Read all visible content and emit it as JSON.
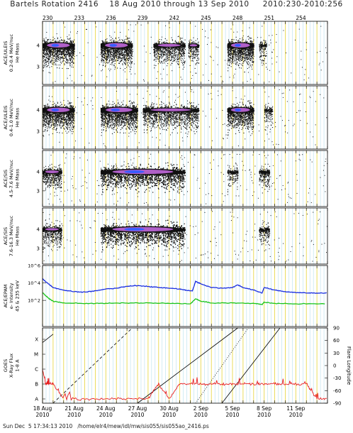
{
  "title": "Bartels Rotation 2416    18 Aug 2010 through 13 Sep 2010     2010:230-2010:256",
  "footer": "Sun Dec  5 17:34:13 2010   /home/elr4/mew/idl/mw/sis055/sis055ao_2416.ps",
  "top_axis": {
    "doy_start": 230,
    "doy_end": 257,
    "labels": [
      {
        "doy": 230,
        "text": "230"
      },
      {
        "doy": 233,
        "text": "233"
      },
      {
        "doy": 236,
        "text": "236"
      },
      {
        "doy": 239,
        "text": "239"
      },
      {
        "doy": 242,
        "text": "242"
      },
      {
        "doy": 245,
        "text": "245"
      },
      {
        "doy": 248,
        "text": "248"
      },
      {
        "doy": 251,
        "text": "251"
      },
      {
        "doy": 254,
        "text": "254"
      }
    ]
  },
  "bottom_axis": {
    "labels": [
      {
        "doy": 230,
        "line1": "18 Aug",
        "line2": "2010"
      },
      {
        "doy": 233,
        "line1": "21 Aug",
        "line2": "2010"
      },
      {
        "doy": 236,
        "line1": "24 Aug",
        "line2": "2010"
      },
      {
        "doy": 239,
        "line1": "27 Aug",
        "line2": "2010"
      },
      {
        "doy": 242,
        "line1": "30 Aug",
        "line2": "2010"
      },
      {
        "doy": 245,
        "line1": "2 Sep",
        "line2": "2010"
      },
      {
        "doy": 248,
        "line1": "5 Sep",
        "line2": "2010"
      },
      {
        "doy": 251,
        "line1": "8 Sep",
        "line2": "2010"
      },
      {
        "doy": 254,
        "line1": "11 Sep",
        "line2": "2010"
      }
    ]
  },
  "colors": {
    "grid_major": "#e8d84a",
    "grid_minor": "#a8d8e8",
    "dots": "#111111",
    "core": "#b060c8",
    "core_center": "#3a5cff",
    "electron_high": "#1a2ee0",
    "electron_low": "#19c419",
    "xray": "#e82020",
    "frame": "#000000"
  },
  "chart_data": [
    {
      "type": "scatter",
      "ylabel": [
        "ACE/ULEIS",
        "0.2-0.4 MeV/nuc",
        "He Mass"
      ],
      "yticks": [
        "4",
        "3"
      ],
      "bursts": [
        {
          "doy_start": 230.0,
          "doy_end": 233.0,
          "intensity": 1.0
        },
        {
          "doy_start": 235.5,
          "doy_end": 238.5,
          "intensity": 1.0
        },
        {
          "doy_start": 240.5,
          "doy_end": 243.5,
          "intensity": 0.6
        },
        {
          "doy_start": 243.8,
          "doy_end": 244.8,
          "intensity": 0.5
        },
        {
          "doy_start": 247.5,
          "doy_end": 250.0,
          "intensity": 1.0
        },
        {
          "doy_start": 250.5,
          "doy_end": 251.2,
          "intensity": 0.3
        }
      ]
    },
    {
      "type": "scatter",
      "ylabel": [
        "ACE/ULEIS",
        "0.4-1.0 MeV/nuc",
        "He Mass"
      ],
      "yticks": [
        "4",
        "3"
      ],
      "bursts": [
        {
          "doy_start": 230.0,
          "doy_end": 233.0,
          "intensity": 1.0
        },
        {
          "doy_start": 235.5,
          "doy_end": 239.0,
          "intensity": 1.0
        },
        {
          "doy_start": 239.5,
          "doy_end": 244.8,
          "intensity": 0.6
        },
        {
          "doy_start": 247.5,
          "doy_end": 250.0,
          "intensity": 0.9
        },
        {
          "doy_start": 251.0,
          "doy_end": 251.8,
          "intensity": 0.3
        }
      ]
    },
    {
      "type": "scatter",
      "ylabel": [
        "ACE/SIS",
        "4.5-7.6 MeV/nuc",
        "He Mass"
      ],
      "yticks": [
        "4",
        "3"
      ],
      "bursts": [
        {
          "doy_start": 230.0,
          "doy_end": 231.8,
          "intensity": 0.6
        },
        {
          "doy_start": 235.5,
          "doy_end": 243.5,
          "intensity": 1.0
        },
        {
          "doy_start": 247.5,
          "doy_end": 248.5,
          "intensity": 0.3
        },
        {
          "doy_start": 250.5,
          "doy_end": 251.5,
          "intensity": 0.4
        }
      ]
    },
    {
      "type": "scatter",
      "ylabel": [
        "ACE/SIS",
        "7.6-16.3 MeV/nuc",
        "He Mass"
      ],
      "yticks": [
        "4",
        "3"
      ],
      "bursts": [
        {
          "doy_start": 230.0,
          "doy_end": 231.8,
          "intensity": 0.5
        },
        {
          "doy_start": 235.5,
          "doy_end": 243.5,
          "intensity": 1.0
        },
        {
          "doy_start": 250.5,
          "doy_end": 251.5,
          "intensity": 0.35
        }
      ]
    },
    {
      "type": "line",
      "ylabel": [
        "ACE/EPAM",
        "e- Intensity",
        "45 & 235 keV"
      ],
      "yscale": "log",
      "ylim": [
        0.1,
        1000000
      ],
      "yticks": [
        "10^6",
        "10^4",
        "10^2"
      ],
      "series": [
        {
          "name": "45 keV",
          "x": [
            230.0,
            230.5,
            231.0,
            232.0,
            233.0,
            234.0,
            235.0,
            236.0,
            237.0,
            238.0,
            239.0,
            240.0,
            241.0,
            242.0,
            243.0,
            243.5,
            244.2,
            244.5,
            245.0,
            246.0,
            247.0,
            248.0,
            248.5,
            249.0,
            250.0,
            250.8,
            251.0,
            252.0,
            253.0,
            254.0,
            255.0,
            256.0,
            257.0
          ],
          "y": [
            30000,
            9000,
            3000,
            1500,
            1000,
            900,
            1200,
            2000,
            2500,
            4000,
            5000,
            4000,
            3000,
            2500,
            2000,
            1500,
            1200,
            15000,
            8000,
            3000,
            2500,
            3000,
            6000,
            3000,
            1500,
            700,
            3000,
            1500,
            1000,
            800,
            700,
            700,
            700
          ]
        },
        {
          "name": "235 keV",
          "x": [
            230.0,
            230.5,
            231.0,
            232.0,
            234.0,
            236.0,
            238.0,
            240.0,
            242.0,
            244.0,
            244.5,
            245.0,
            246.0,
            248.0,
            250.0,
            250.8,
            251.0,
            252.0,
            254.0,
            257.0
          ],
          "y": [
            800,
            200,
            80,
            50,
            45,
            45,
            50,
            50,
            45,
            40,
            150,
            80,
            50,
            50,
            45,
            35,
            60,
            45,
            40,
            40
          ]
        }
      ]
    },
    {
      "type": "line",
      "ylabel": [
        "GOES",
        "X-Ray Flux",
        "1-8 A"
      ],
      "yticks": [
        "X",
        "M",
        "C",
        "B",
        "A"
      ],
      "y2label": "Flare Longitude",
      "y2lim": [
        -90,
        90
      ],
      "y2ticks": [
        90,
        60,
        30,
        0,
        -30,
        -60,
        -90
      ],
      "series": [
        {
          "name": "X-ray",
          "x": [
            230.0,
            230.3,
            230.6,
            231.0,
            232.0,
            234.0,
            236.0,
            238.0,
            240.0,
            241.0,
            242.0,
            243.0,
            244.0,
            245.0,
            246.0,
            247.0,
            248.0,
            249.0,
            250.0,
            251.0,
            252.0,
            253.0,
            254.0,
            255.0,
            256.0,
            257.0
          ],
          "y": [
            "C",
            "B",
            "B",
            "B",
            "A",
            "A",
            "A",
            "A",
            "A",
            "B",
            "A",
            "B",
            "B",
            "B",
            "B",
            "B",
            "B",
            "B",
            "B",
            "B",
            "B",
            "B",
            "B",
            "B",
            "A",
            "A"
          ]
        }
      ]
    }
  ]
}
